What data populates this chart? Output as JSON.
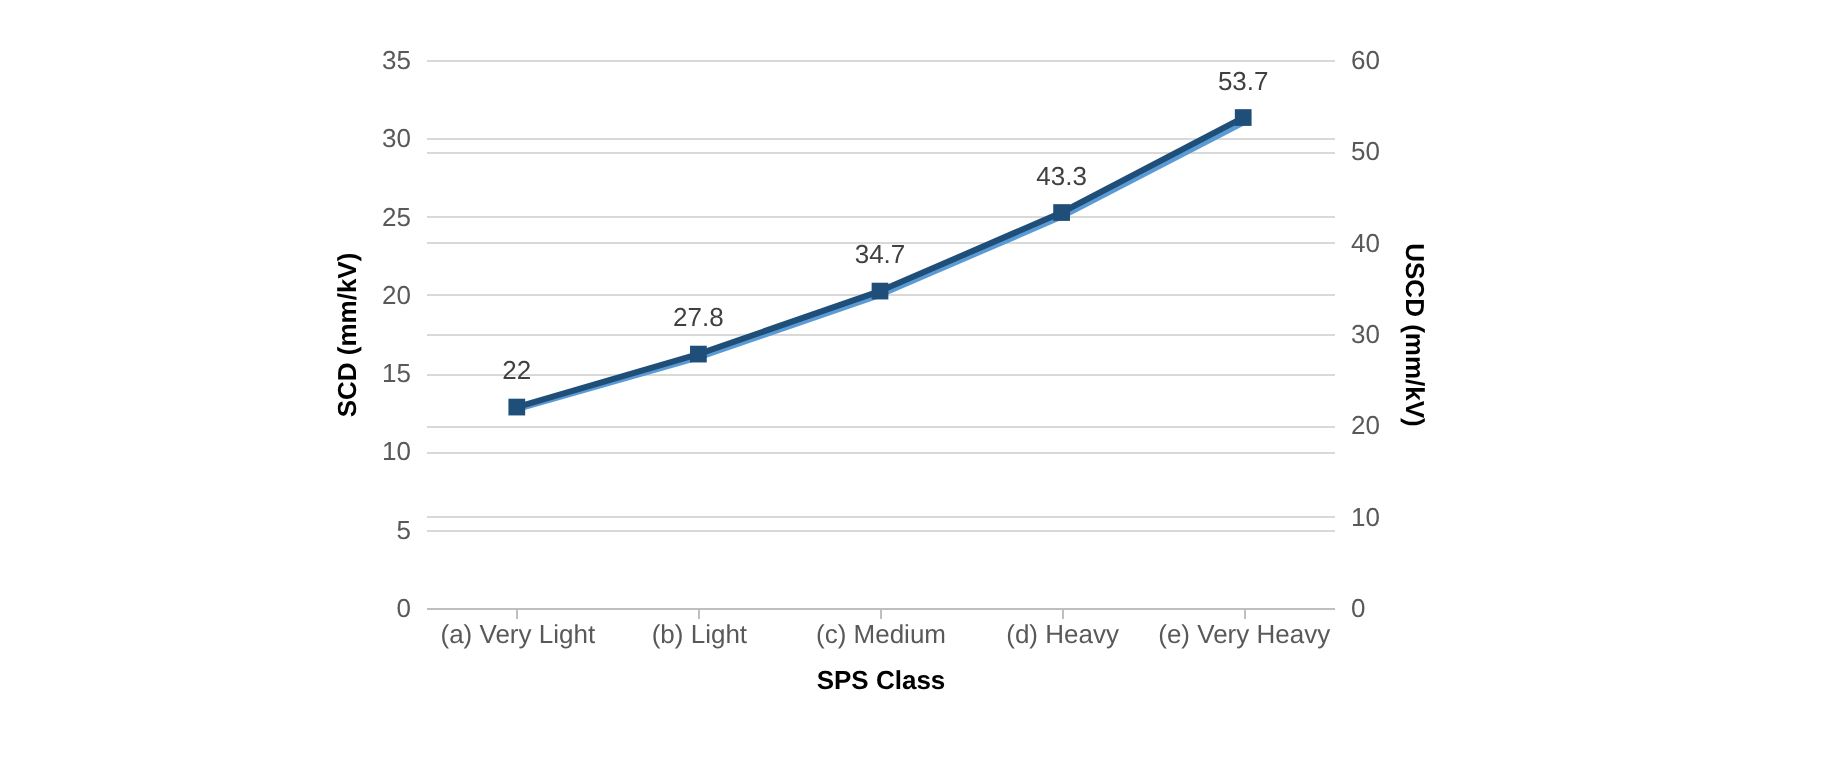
{
  "chart_data": {
    "type": "line",
    "xlabel": "SPS Class",
    "ylabel": "SCD (mm/kV)",
    "y2label": "USCD (mm/kV)",
    "categories": [
      "(a) Very Light",
      "(b) Light",
      "(c) Medium",
      "(d) Heavy",
      "(e) Very Heavy"
    ],
    "series": [
      {
        "color": "#5b9bd5",
        "values": [
          12.7,
          16.0,
          20.0,
          25.0,
          31.0
        ],
        "marker": "none"
      },
      {
        "color": "#1f4e79",
        "axis": "y2",
        "values": [
          22,
          27.8,
          34.7,
          43.3,
          53.7
        ],
        "marker": "square",
        "value_labels": [
          "22",
          "27.8",
          "34.7",
          "43.3",
          "53.7"
        ]
      }
    ],
    "ylim": [
      0,
      35
    ],
    "yticks": [
      0,
      5,
      10,
      15,
      20,
      25,
      30,
      35
    ],
    "y2lim": [
      0,
      60
    ],
    "y2ticks": [
      0,
      10,
      20,
      30,
      40,
      50,
      60
    ],
    "grid": true,
    "line_style": "solid"
  }
}
